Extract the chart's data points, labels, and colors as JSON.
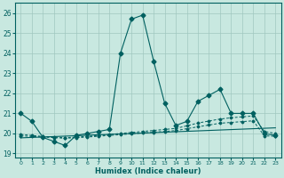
{
  "xlabel": "Humidex (Indice chaleur)",
  "background_color": "#c8e8e0",
  "grid_color": "#a0c8c0",
  "line_color": "#006060",
  "xlim": [
    -0.5,
    23.5
  ],
  "ylim": [
    18.8,
    26.5
  ],
  "xticks": [
    0,
    1,
    2,
    3,
    4,
    5,
    6,
    7,
    8,
    9,
    10,
    11,
    12,
    13,
    14,
    15,
    16,
    17,
    18,
    19,
    20,
    21,
    22,
    23
  ],
  "yticks": [
    19,
    20,
    21,
    22,
    23,
    24,
    25,
    26
  ],
  "series1_x": [
    0,
    1,
    2,
    3,
    4,
    5,
    6,
    7,
    8,
    9,
    10,
    11,
    12,
    13,
    14,
    15,
    16,
    17,
    18,
    19,
    20,
    21,
    22,
    23
  ],
  "series1_y": [
    21.0,
    20.6,
    19.8,
    19.6,
    19.4,
    19.9,
    20.0,
    20.1,
    20.2,
    24.0,
    25.7,
    25.9,
    23.6,
    21.5,
    20.4,
    20.6,
    21.6,
    21.9,
    22.2,
    21.0,
    21.0,
    21.0,
    20.0,
    19.9
  ],
  "series2_x": [
    0,
    1,
    2,
    3,
    4,
    5,
    6,
    7,
    8,
    9,
    10,
    11,
    12,
    13,
    14,
    15,
    16,
    17,
    18,
    19,
    20,
    21,
    22,
    23
  ],
  "series2_y": [
    19.95,
    19.9,
    19.85,
    19.82,
    19.79,
    19.82,
    19.85,
    19.9,
    19.95,
    20.0,
    20.05,
    20.1,
    20.15,
    20.2,
    20.25,
    20.38,
    20.52,
    20.62,
    20.72,
    20.78,
    20.83,
    20.87,
    20.1,
    20.0
  ],
  "series3_x": [
    0,
    1,
    2,
    3,
    4,
    5,
    6,
    7,
    8,
    9,
    10,
    11,
    12,
    13,
    14,
    15,
    16,
    17,
    18,
    19,
    20,
    21,
    22,
    23
  ],
  "series3_y": [
    19.88,
    19.85,
    19.82,
    19.79,
    19.76,
    19.79,
    19.82,
    19.86,
    19.9,
    19.94,
    19.98,
    20.02,
    20.06,
    20.1,
    20.14,
    20.24,
    20.33,
    20.42,
    20.51,
    20.55,
    20.59,
    20.63,
    19.88,
    19.86
  ],
  "series4_x": [
    0,
    23
  ],
  "series4_y": [
    19.78,
    20.28
  ]
}
